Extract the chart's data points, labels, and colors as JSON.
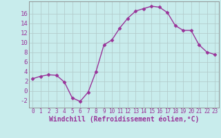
{
  "x": [
    0,
    1,
    2,
    3,
    4,
    5,
    6,
    7,
    8,
    9,
    10,
    11,
    12,
    13,
    14,
    15,
    16,
    17,
    18,
    19,
    20,
    21,
    22,
    23
  ],
  "y": [
    2.5,
    3.0,
    3.3,
    3.2,
    1.8,
    -1.5,
    -2.2,
    -0.3,
    4.0,
    9.5,
    10.5,
    13.0,
    15.0,
    16.5,
    17.0,
    17.5,
    17.3,
    16.2,
    13.5,
    12.5,
    12.5,
    9.5,
    8.0,
    7.5
  ],
  "line_color": "#993399",
  "marker": "D",
  "marker_size": 2.5,
  "bg_color": "#c8ecec",
  "grid_color": "#b0c8c8",
  "xlabel": "Windchill (Refroidissement éolien,°C)",
  "ylabel": "",
  "ylim": [
    -3.5,
    18.5
  ],
  "xlim": [
    -0.5,
    23.5
  ],
  "yticks": [
    -2,
    0,
    2,
    4,
    6,
    8,
    10,
    12,
    14,
    16
  ],
  "xticks": [
    0,
    1,
    2,
    3,
    4,
    5,
    6,
    7,
    8,
    9,
    10,
    11,
    12,
    13,
    14,
    15,
    16,
    17,
    18,
    19,
    20,
    21,
    22,
    23
  ],
  "tick_color": "#993399",
  "xlabel_color": "#993399",
  "xlabel_fontsize": 7,
  "ytick_fontsize": 6.5,
  "xtick_fontsize": 5.5,
  "spine_color": "#888888",
  "line_width": 1.0
}
